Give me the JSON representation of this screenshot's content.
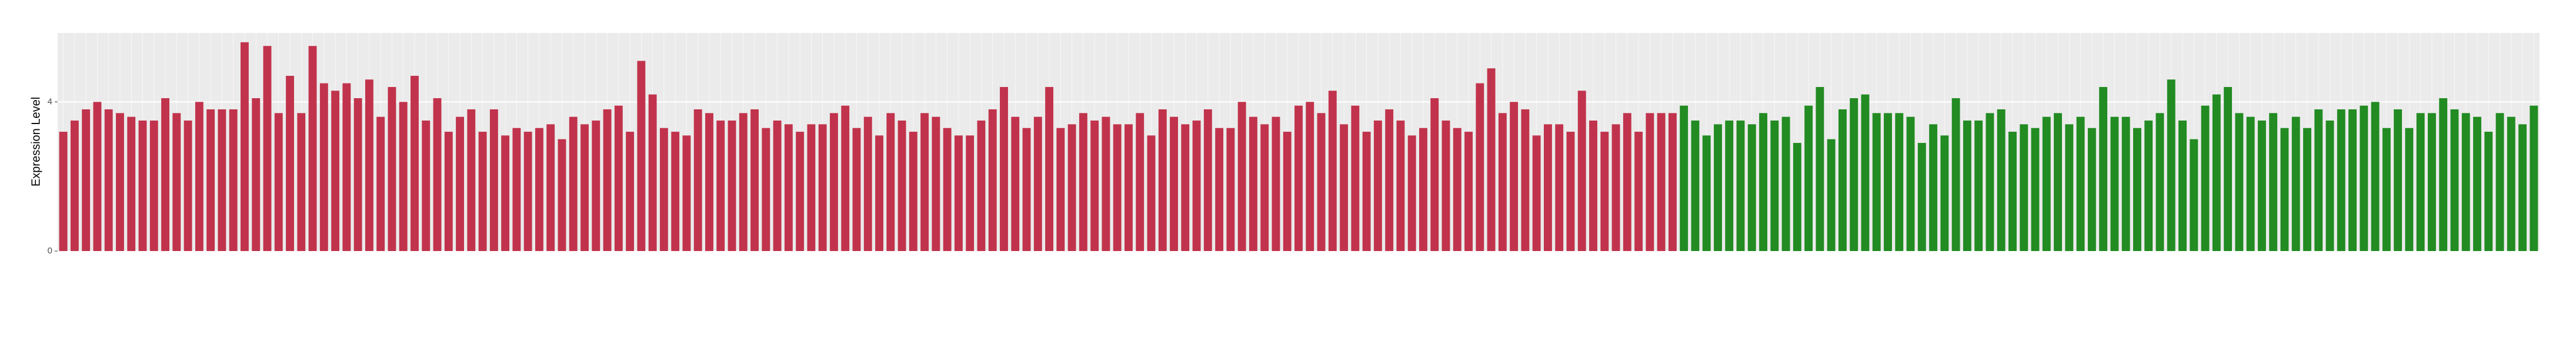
{
  "chart_data": {
    "type": "bar",
    "y_label": "Expression Level",
    "ylim": [
      0,
      5.85
    ],
    "yticks": [
      0,
      4
    ],
    "grid": true,
    "series": [
      {
        "color": "#c1334c",
        "values": [
          3.2,
          3.5,
          3.8,
          4.0,
          3.8,
          3.7,
          3.6,
          3.5,
          3.5,
          4.1,
          3.7,
          3.5,
          4.0,
          3.8,
          3.8,
          3.8,
          5.6,
          4.1,
          5.5,
          3.7,
          4.7,
          3.7,
          5.5,
          4.5,
          4.3,
          4.5,
          4.1,
          4.6,
          3.6,
          4.4,
          4.0,
          4.7,
          3.5,
          4.1,
          3.2,
          3.6,
          3.8,
          3.2,
          3.8,
          3.1,
          3.3,
          3.2,
          3.3,
          3.4,
          3.0,
          3.6,
          3.4,
          3.5,
          3.8,
          3.9,
          3.2,
          5.1,
          4.2,
          3.3,
          3.2,
          3.1,
          3.8,
          3.7,
          3.5,
          3.5,
          3.7,
          3.8,
          3.3,
          3.5,
          3.4,
          3.2,
          3.4,
          3.4,
          3.7,
          3.9,
          3.3,
          3.6,
          3.1,
          3.7,
          3.5,
          3.2,
          3.7,
          3.6,
          3.3,
          3.1,
          3.1,
          3.5,
          3.8,
          4.4,
          3.6,
          3.3,
          3.6,
          4.4,
          3.3,
          3.4,
          3.7,
          3.5,
          3.6,
          3.4,
          3.4,
          3.7,
          3.1,
          3.8,
          3.6,
          3.4,
          3.5,
          3.8,
          3.3,
          3.3,
          4.0,
          3.6,
          3.4,
          3.6,
          3.2,
          3.9,
          4.0,
          3.7,
          4.3,
          3.4,
          3.9,
          3.2,
          3.5,
          3.8,
          3.5,
          3.1,
          3.3,
          4.1,
          3.5,
          3.3,
          3.2,
          4.5,
          4.9,
          3.7,
          4.0,
          3.8,
          3.1,
          3.4,
          3.4,
          3.2,
          4.3,
          3.5,
          3.2,
          3.4,
          3.7,
          3.2,
          3.7,
          3.7,
          3.7
        ]
      },
      {
        "color": "#228b22",
        "values": [
          3.9,
          3.5,
          3.1,
          3.4,
          3.5,
          3.5,
          3.4,
          3.7,
          3.5,
          3.6,
          2.9,
          3.9,
          4.4,
          3.0,
          3.8,
          4.1,
          4.2,
          3.7,
          3.7,
          3.7,
          3.6,
          2.9,
          3.4,
          3.1,
          4.1,
          3.5,
          3.5,
          3.7,
          3.8,
          3.2,
          3.4,
          3.3,
          3.6,
          3.7,
          3.4,
          3.6,
          3.3,
          4.4,
          3.6,
          3.6,
          3.3,
          3.5,
          3.7,
          4.6,
          3.5,
          3.0,
          3.9,
          4.2,
          4.4,
          3.7,
          3.6,
          3.5,
          3.7,
          3.3,
          3.6,
          3.3,
          3.8,
          3.5,
          3.8,
          3.8,
          3.9,
          4.0,
          3.3,
          3.8,
          3.3,
          3.7,
          3.7,
          4.1,
          3.8,
          3.7,
          3.6,
          3.2,
          3.7,
          3.6,
          3.4,
          3.9
        ]
      }
    ]
  }
}
